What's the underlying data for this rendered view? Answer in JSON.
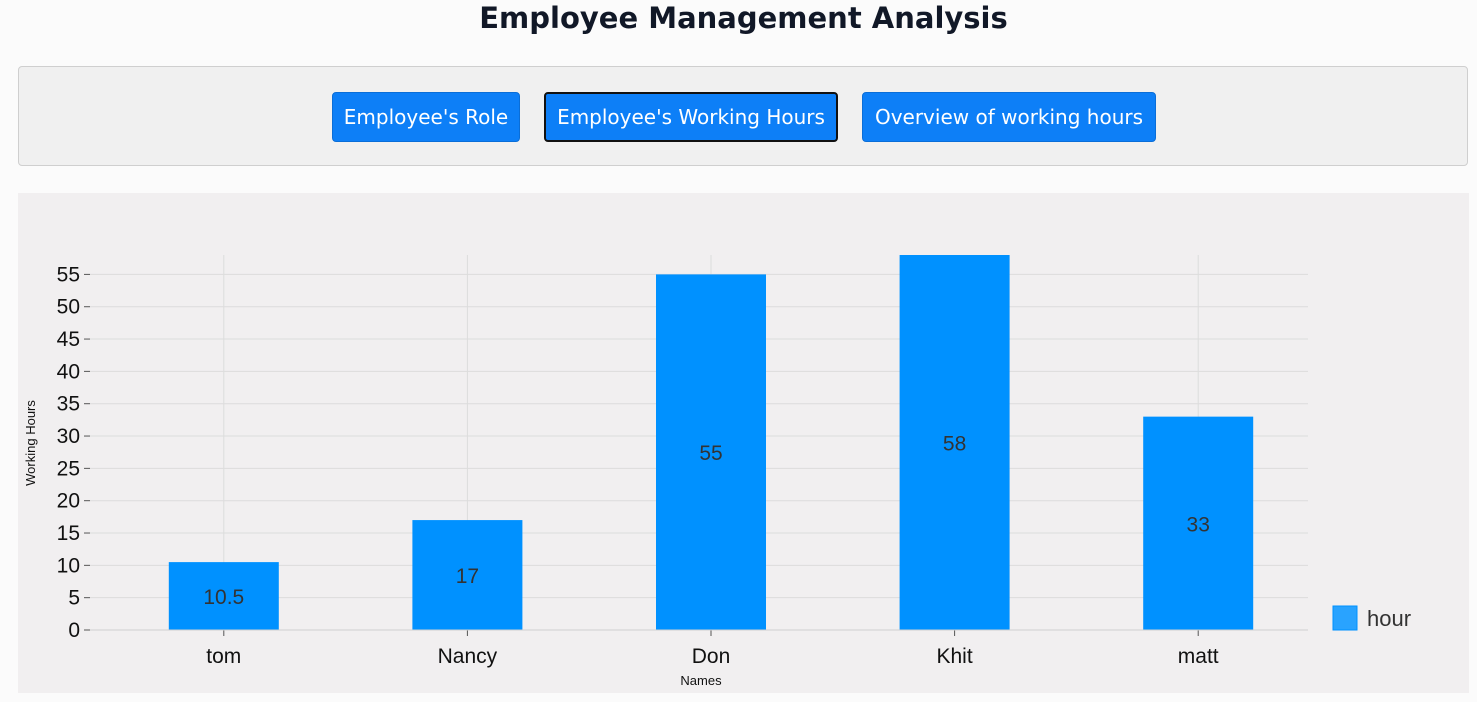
{
  "page": {
    "title": "Employee Management Analysis"
  },
  "nav": {
    "buttons": [
      {
        "label": "Employee's Role",
        "active": false
      },
      {
        "label": "Employee's Working Hours",
        "active": true
      },
      {
        "label": "Overview of working hours",
        "active": false
      }
    ]
  },
  "colors": {
    "button": "#0d7ff7",
    "bar": "#0091ff",
    "legend_swatch": "#29a3ff",
    "chart_background": "#f1eff0",
    "grid": "#dcdcdc"
  },
  "chart_data": {
    "type": "bar",
    "title": "",
    "xlabel": "Names",
    "ylabel": "Working Hours",
    "categories": [
      "tom",
      "Nancy",
      "Don",
      "Khit",
      "matt"
    ],
    "series": [
      {
        "name": "hour",
        "values": [
          10.5,
          17,
          55,
          58,
          33
        ]
      }
    ],
    "data_labels": [
      "10.5",
      "17",
      "55",
      "58",
      "33"
    ],
    "ylim": [
      0,
      58
    ],
    "yticks": [
      0,
      5,
      10,
      15,
      20,
      25,
      30,
      35,
      40,
      45,
      50,
      55
    ],
    "grid": true,
    "legend_position": "bottom-right"
  }
}
